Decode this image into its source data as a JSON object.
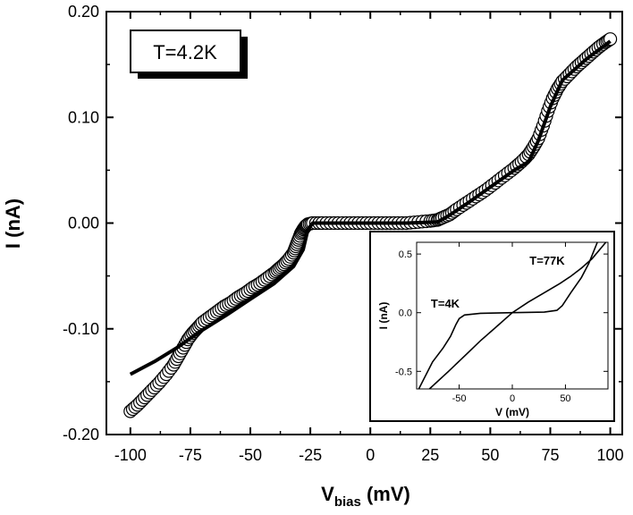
{
  "chart_data": {
    "type": "scatter",
    "title": "",
    "xlabel": "V",
    "xlabel_sub": "bias",
    "xlabel_unit": " (mV)",
    "ylabel": "I (nA)",
    "xlim": [
      -110,
      105
    ],
    "ylim": [
      -0.2,
      0.2
    ],
    "x_ticks": [
      -100,
      -75,
      -50,
      -25,
      0,
      25,
      50,
      75,
      100
    ],
    "x_tick_labels": [
      "-100",
      "-75",
      "-50",
      "-25",
      "0",
      "25",
      "50",
      "75",
      "100"
    ],
    "y_ticks": [
      -0.2,
      -0.1,
      0.0,
      0.1,
      0.2
    ],
    "y_tick_labels": [
      "-0.20",
      "-0.10",
      "0.00",
      "0.10",
      "0.20"
    ],
    "grid": false,
    "annotation": "T=4.2K",
    "series": [
      {
        "marker": "open-circle",
        "x": [
          -100,
          -97,
          -94,
          -91,
          -88,
          -85,
          -82,
          -80,
          -78,
          -76,
          -74,
          -72,
          -70,
          -67,
          -64,
          -61,
          -58,
          -55,
          -52,
          -49,
          -46,
          -43,
          -40,
          -38,
          -36,
          -34,
          -32,
          -31,
          -30,
          -29,
          -28,
          -27,
          -26,
          -24,
          -20,
          -15,
          -10,
          -5,
          0,
          5,
          10,
          15,
          20,
          25,
          28,
          30,
          33,
          36,
          40,
          44,
          48,
          52,
          56,
          60,
          63,
          66,
          68,
          70,
          72,
          74,
          76,
          78,
          80,
          83,
          86,
          89,
          92,
          95,
          98,
          100
        ],
        "y": [
          -0.178,
          -0.172,
          -0.165,
          -0.158,
          -0.151,
          -0.143,
          -0.134,
          -0.126,
          -0.118,
          -0.11,
          -0.104,
          -0.099,
          -0.094,
          -0.089,
          -0.084,
          -0.079,
          -0.075,
          -0.07,
          -0.066,
          -0.061,
          -0.057,
          -0.052,
          -0.047,
          -0.043,
          -0.039,
          -0.034,
          -0.028,
          -0.022,
          -0.016,
          -0.01,
          -0.006,
          -0.003,
          -0.001,
          0,
          0,
          0,
          0,
          0,
          0,
          0,
          0,
          0,
          0.001,
          0.002,
          0.003,
          0.005,
          0.008,
          0.013,
          0.019,
          0.025,
          0.031,
          0.038,
          0.045,
          0.052,
          0.058,
          0.065,
          0.072,
          0.08,
          0.092,
          0.106,
          0.118,
          0.127,
          0.134,
          0.141,
          0.148,
          0.154,
          0.16,
          0.166,
          0.171,
          0.174
        ]
      },
      {
        "marker": "line",
        "x": [
          -100,
          -90,
          -80,
          -72,
          -60,
          -50,
          -40,
          -32,
          -28,
          -26,
          -24,
          -15,
          0,
          15,
          28,
          32,
          40,
          50,
          60,
          66,
          70,
          75,
          80,
          90,
          100
        ],
        "y": [
          -0.143,
          -0.131,
          -0.117,
          -0.104,
          -0.087,
          -0.072,
          -0.057,
          -0.041,
          -0.025,
          -0.006,
          0,
          0,
          0,
          0,
          0.001,
          0.006,
          0.018,
          0.034,
          0.05,
          0.058,
          0.078,
          0.11,
          0.135,
          0.155,
          0.172
        ]
      }
    ],
    "inset": {
      "type": "line",
      "xlabel": "V (mV)",
      "ylabel": "I (nA)",
      "xlim": [
        -90,
        90
      ],
      "ylim": [
        -0.65,
        0.6
      ],
      "x_ticks": [
        -50,
        0,
        50
      ],
      "x_tick_labels": [
        "-50",
        "0",
        "50"
      ],
      "y_ticks": [
        -0.5,
        0.0,
        0.5
      ],
      "y_tick_labels": [
        "-0.5",
        "0.0",
        "0.5"
      ],
      "annotations": [
        "T=77K",
        "T=4K"
      ],
      "series": [
        {
          "x": [
            -78,
            -60,
            -45,
            -30,
            -15,
            0,
            15,
            30,
            45,
            55,
            65,
            75,
            88
          ],
          "y": [
            -0.65,
            -0.5,
            -0.37,
            -0.24,
            -0.12,
            0,
            0.09,
            0.17,
            0.25,
            0.31,
            0.38,
            0.46,
            0.6
          ],
          "label": "T=77K"
        },
        {
          "x": [
            -88,
            -75,
            -65,
            -58,
            -53,
            -50,
            -45,
            -30,
            0,
            30,
            42,
            47,
            50,
            55,
            65,
            72,
            80
          ],
          "y": [
            -0.65,
            -0.42,
            -0.3,
            -0.2,
            -0.1,
            -0.05,
            -0.02,
            -0.005,
            0,
            0.005,
            0.02,
            0.06,
            0.1,
            0.17,
            0.3,
            0.42,
            0.6
          ],
          "label": "T=4K"
        }
      ]
    }
  }
}
